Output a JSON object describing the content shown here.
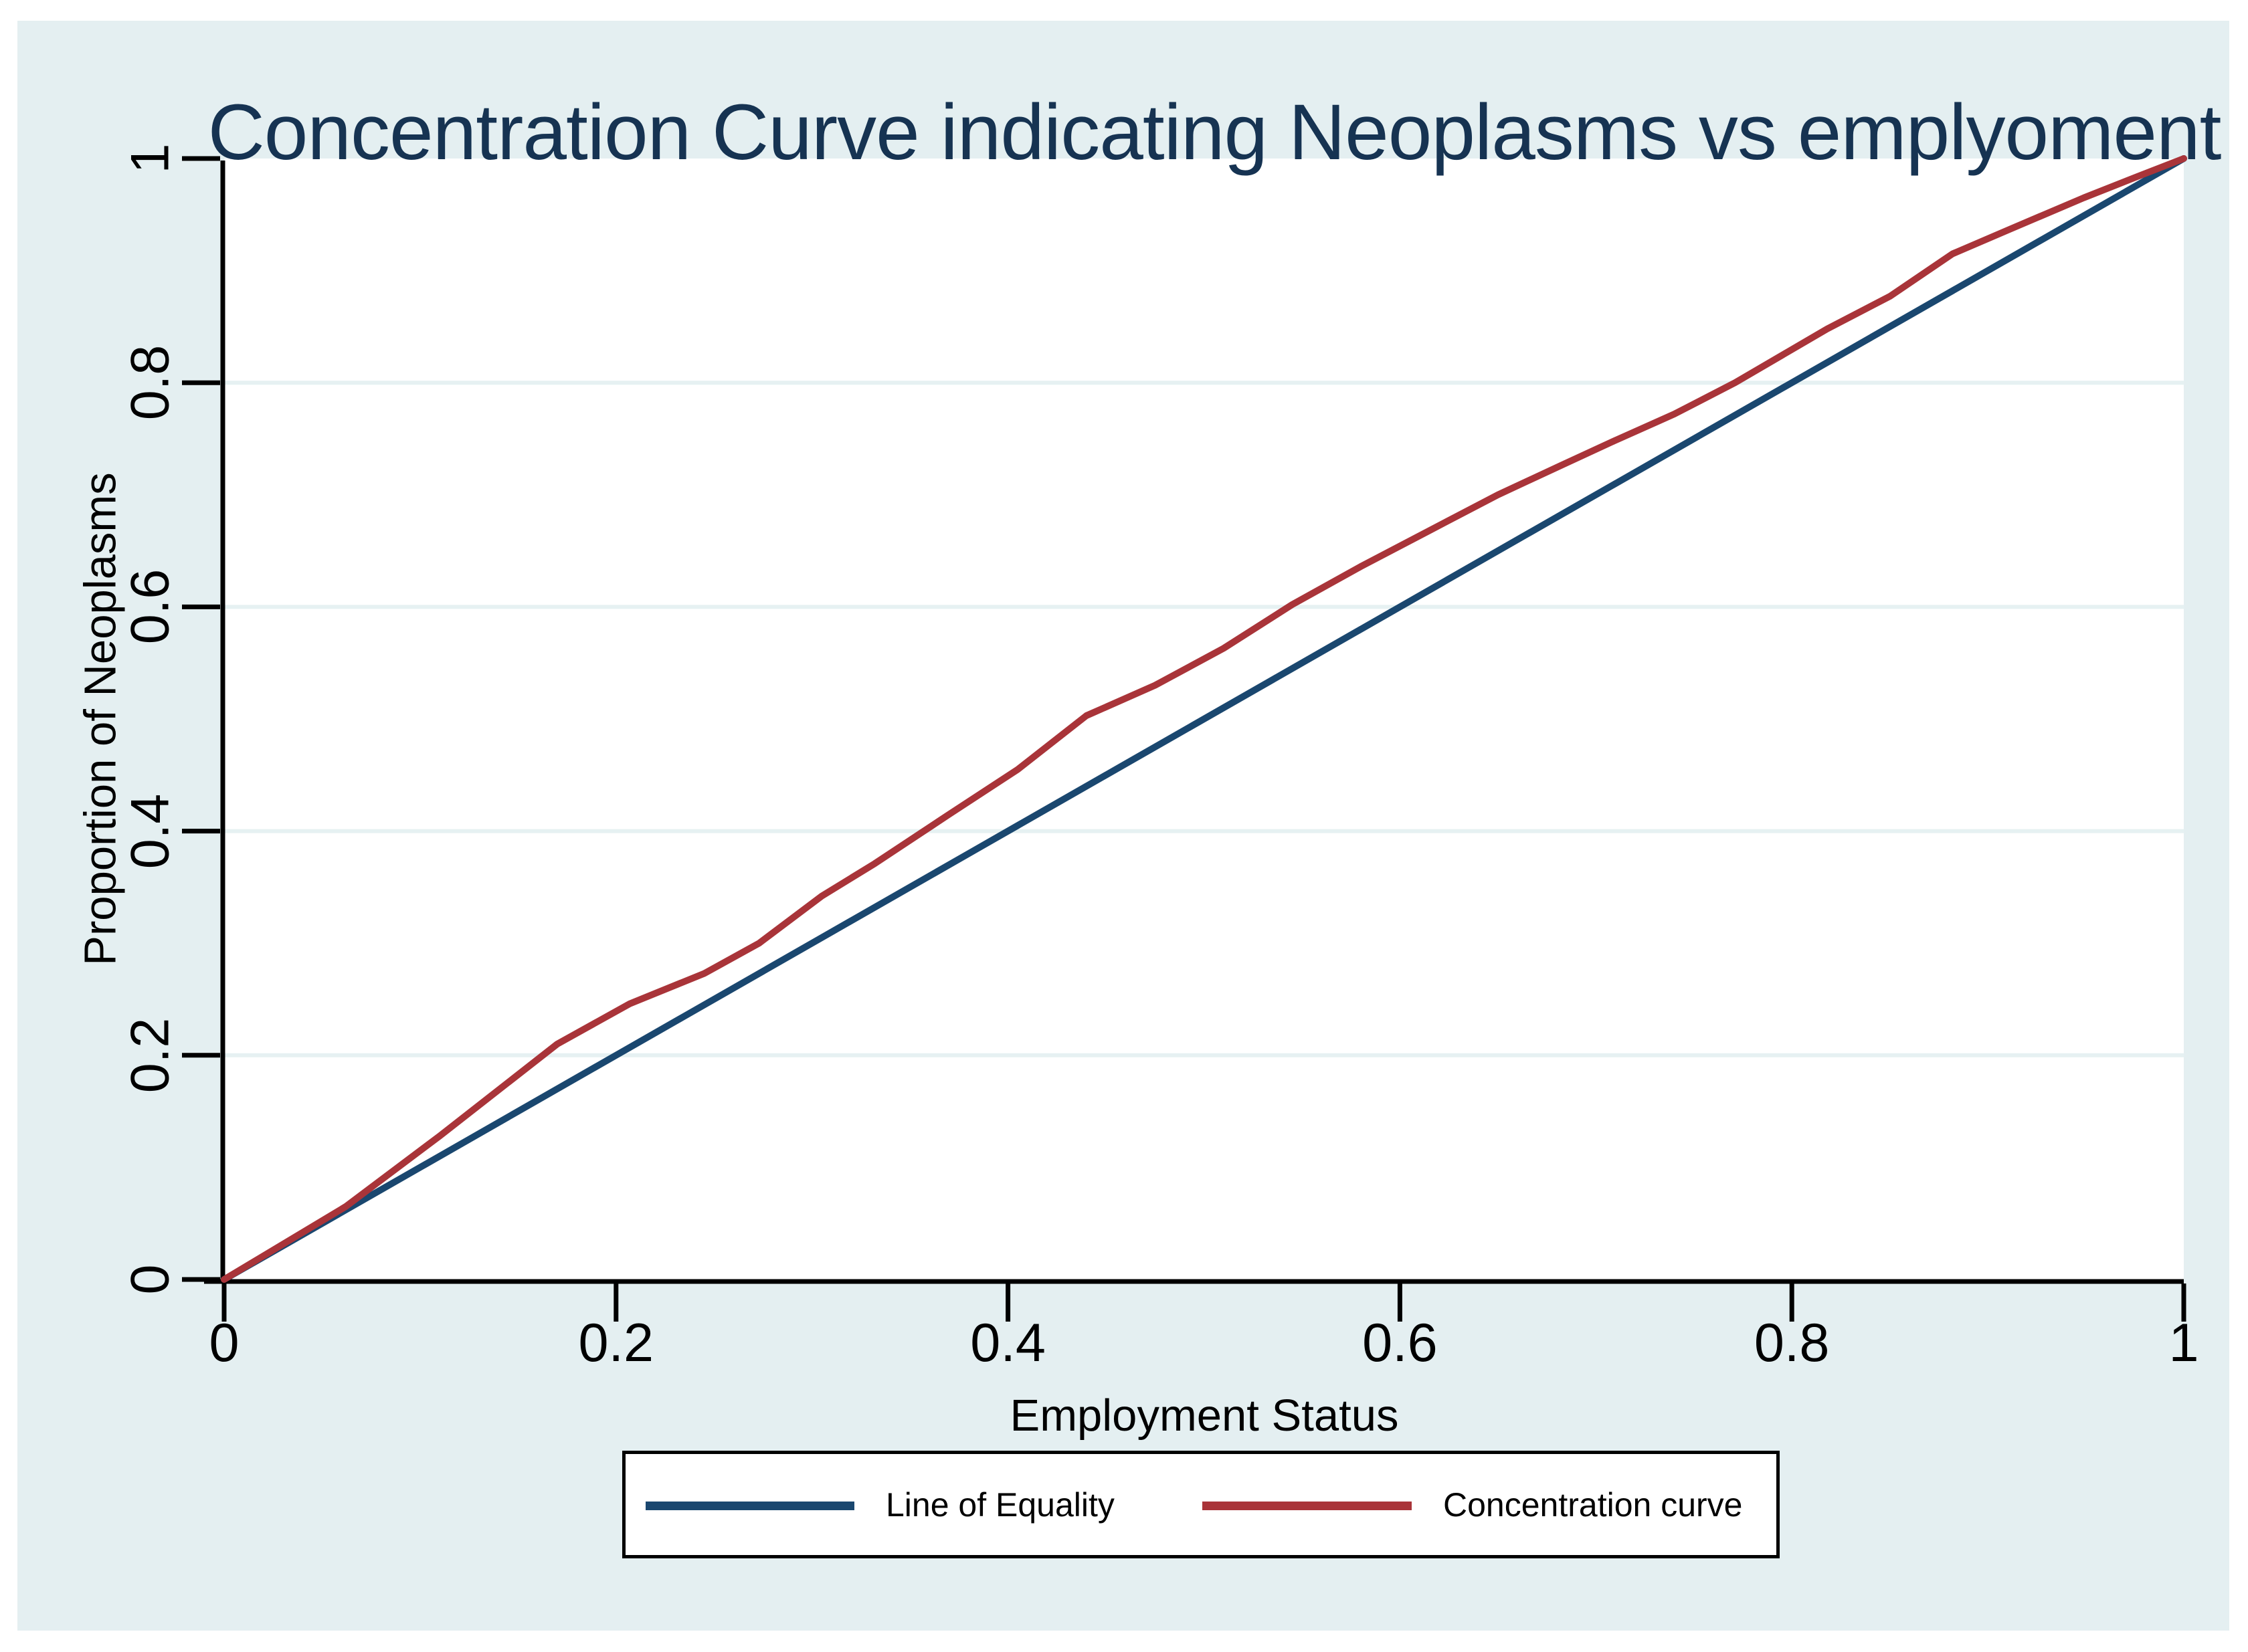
{
  "figure": {
    "background": "#FFFFFF",
    "canvas_background": "#E4EFF1",
    "plot_background": "#FFFFFF"
  },
  "chart_data": {
    "type": "line",
    "title": "Concentration Curve indicating Neoplasms vs emplyoment",
    "title_color": "#163352",
    "xlabel": "Employment Status",
    "ylabel": "Proportion of Neoplasms",
    "xlim": [
      0,
      1
    ],
    "ylim": [
      0,
      1
    ],
    "x_ticks": [
      0,
      0.2,
      0.4,
      0.6,
      0.8,
      1
    ],
    "x_tick_labels": [
      "0",
      "0.2",
      "0.4",
      "0.6",
      "0.8",
      "1"
    ],
    "y_ticks": [
      0,
      0.2,
      0.4,
      0.6,
      0.8,
      1
    ],
    "y_tick_labels": [
      "0",
      "0.2",
      "0.4",
      "0.6",
      "0.8",
      "1"
    ],
    "grid": "horizontal",
    "grid_color": "#E6F1F2",
    "axis_color": "#000000",
    "legend_position": "bottom-center",
    "series": [
      {
        "name": "Line of Equality",
        "color": "#1A476F",
        "points": [
          [
            0,
            0
          ],
          [
            1,
            1
          ]
        ]
      },
      {
        "name": "Concentration curve",
        "color": "#A93439",
        "points": [
          [
            0,
            0
          ],
          [
            0.062,
            0.065
          ],
          [
            0.11,
            0.128
          ],
          [
            0.17,
            0.21
          ],
          [
            0.207,
            0.246
          ],
          [
            0.245,
            0.273
          ],
          [
            0.273,
            0.3
          ],
          [
            0.305,
            0.342
          ],
          [
            0.332,
            0.371
          ],
          [
            0.37,
            0.415
          ],
          [
            0.405,
            0.455
          ],
          [
            0.44,
            0.503
          ],
          [
            0.475,
            0.53
          ],
          [
            0.51,
            0.563
          ],
          [
            0.545,
            0.602
          ],
          [
            0.58,
            0.636
          ],
          [
            0.615,
            0.668
          ],
          [
            0.65,
            0.7
          ],
          [
            0.682,
            0.726
          ],
          [
            0.708,
            0.747
          ],
          [
            0.74,
            0.772
          ],
          [
            0.771,
            0.8
          ],
          [
            0.818,
            0.848
          ],
          [
            0.85,
            0.877
          ],
          [
            0.882,
            0.915
          ],
          [
            0.91,
            0.936
          ],
          [
            0.949,
            0.965
          ],
          [
            0.975,
            0.983
          ],
          [
            1,
            1
          ]
        ]
      }
    ]
  }
}
